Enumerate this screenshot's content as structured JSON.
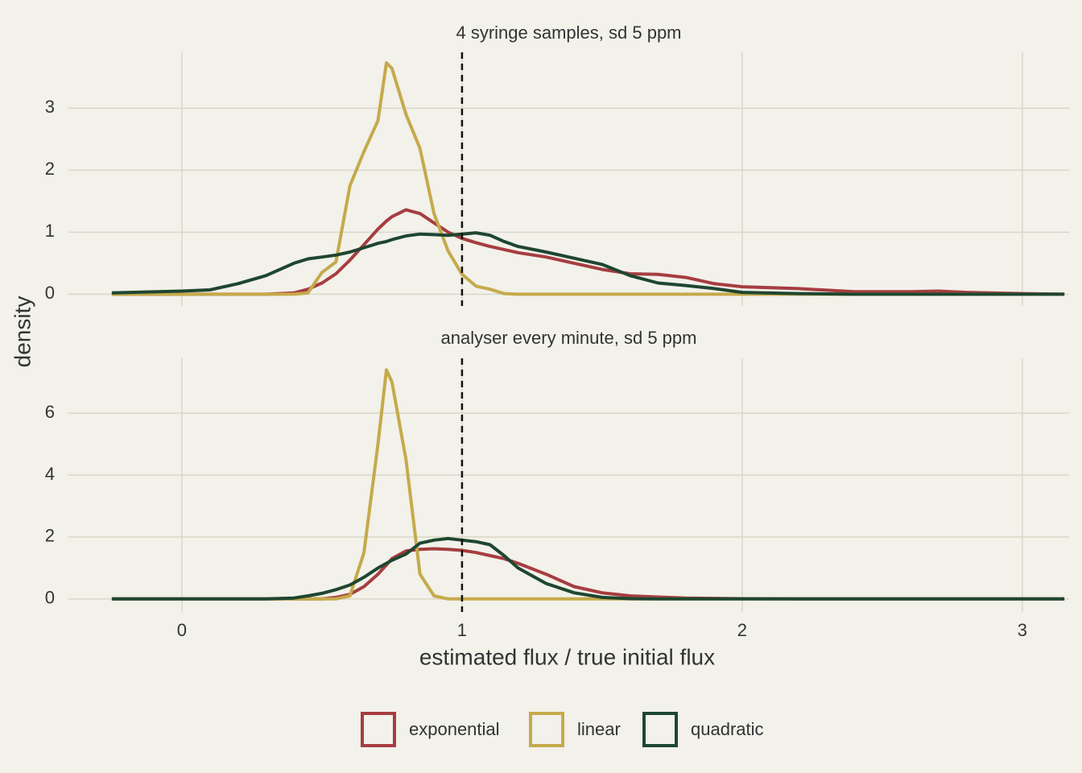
{
  "chart_data": [
    {
      "type": "line",
      "title": "4 syringe samples, sd 5 ppm",
      "ylabel": "density",
      "x": [
        -0.25,
        0,
        0.1,
        0.2,
        0.3,
        0.4,
        0.45,
        0.5,
        0.55,
        0.6,
        0.65,
        0.7,
        0.73,
        0.75,
        0.8,
        0.85,
        0.9,
        0.95,
        1.0,
        1.05,
        1.1,
        1.15,
        1.2,
        1.3,
        1.4,
        1.5,
        1.6,
        1.7,
        1.8,
        1.9,
        2.0,
        2.2,
        2.4,
        2.6,
        2.7,
        2.8,
        3.0,
        3.15
      ],
      "series": [
        {
          "name": "exponential",
          "color": "#a63d40",
          "values": [
            0,
            0,
            0,
            0,
            0,
            0.02,
            0.08,
            0.18,
            0.33,
            0.55,
            0.8,
            1.05,
            1.18,
            1.25,
            1.36,
            1.3,
            1.15,
            1.0,
            0.9,
            0.83,
            0.77,
            0.72,
            0.67,
            0.6,
            0.5,
            0.4,
            0.33,
            0.32,
            0.27,
            0.17,
            0.12,
            0.09,
            0.04,
            0.04,
            0.05,
            0.03,
            0.01,
            0
          ]
        },
        {
          "name": "linear",
          "color": "#c5aa4b",
          "values": [
            0,
            0,
            0,
            0,
            0,
            0,
            0.02,
            0.35,
            0.52,
            1.75,
            2.3,
            2.8,
            3.73,
            3.64,
            2.9,
            2.35,
            1.3,
            0.7,
            0.32,
            0.13,
            0.08,
            0.01,
            0,
            0,
            0,
            0,
            0,
            0,
            0,
            0,
            0,
            0,
            0,
            0,
            0,
            0,
            0,
            0
          ]
        },
        {
          "name": "quadratic",
          "color": "#1e4630",
          "values": [
            0.02,
            0.05,
            0.07,
            0.17,
            0.3,
            0.5,
            0.57,
            0.6,
            0.63,
            0.68,
            0.75,
            0.82,
            0.85,
            0.88,
            0.94,
            0.97,
            0.96,
            0.95,
            0.97,
            0.99,
            0.95,
            0.85,
            0.77,
            0.68,
            0.58,
            0.48,
            0.3,
            0.18,
            0.14,
            0.09,
            0.03,
            0.01,
            0,
            0,
            0,
            0,
            0,
            0
          ]
        }
      ],
      "vline": 1,
      "xlim": [
        -0.405,
        3.167
      ],
      "ylim": [
        -0.19,
        3.9
      ],
      "xticks": [
        0,
        1,
        2,
        3
      ],
      "yticks": [
        0,
        1,
        2,
        3
      ],
      "grid": true,
      "legend": "bottom"
    },
    {
      "type": "line",
      "title": "analyser every minute, sd 5 ppm",
      "xlabel": "estimated flux / true initial flux",
      "x": [
        -0.25,
        0,
        0.1,
        0.2,
        0.3,
        0.4,
        0.45,
        0.5,
        0.55,
        0.6,
        0.65,
        0.7,
        0.73,
        0.75,
        0.8,
        0.85,
        0.9,
        0.95,
        1.0,
        1.05,
        1.1,
        1.15,
        1.2,
        1.3,
        1.4,
        1.5,
        1.6,
        1.7,
        1.8,
        1.9,
        2.0,
        2.2,
        2.4,
        2.6,
        2.7,
        2.8,
        3.0,
        3.15
      ],
      "series": [
        {
          "color": "#a63d40",
          "values": [
            0,
            0,
            0,
            0,
            0,
            0,
            0,
            0,
            0.05,
            0.15,
            0.4,
            0.8,
            1.1,
            1.3,
            1.55,
            1.6,
            1.62,
            1.6,
            1.57,
            1.5,
            1.4,
            1.3,
            1.15,
            0.8,
            0.4,
            0.2,
            0.1,
            0.06,
            0.03,
            0.02,
            0.01,
            0,
            0,
            0,
            0,
            0,
            0,
            0
          ]
        },
        {
          "color": "#c5aa4b",
          "values": [
            0,
            0,
            0,
            0,
            0,
            0,
            0,
            0,
            0,
            0.1,
            1.5,
            5.0,
            7.4,
            7.0,
            4.5,
            0.8,
            0.1,
            0,
            0,
            0,
            0,
            0,
            0,
            0,
            0,
            0,
            0,
            0,
            0,
            0,
            0,
            0,
            0,
            0,
            0,
            0,
            0,
            0
          ]
        },
        {
          "color": "#1e4630",
          "values": [
            0,
            0,
            0,
            0,
            0,
            0.03,
            0.1,
            0.18,
            0.3,
            0.45,
            0.7,
            1.0,
            1.15,
            1.25,
            1.45,
            1.8,
            1.9,
            1.95,
            1.9,
            1.85,
            1.75,
            1.4,
            1.0,
            0.5,
            0.2,
            0.05,
            0.01,
            0,
            0,
            0,
            0,
            0,
            0,
            0,
            0,
            0,
            0,
            0
          ]
        }
      ],
      "vline": 1,
      "xlim": [
        -0.405,
        3.167
      ],
      "ylim": [
        -0.42,
        7.77
      ],
      "xticks": [
        0,
        1,
        2,
        3
      ],
      "yticks": [
        0,
        2,
        4,
        6
      ],
      "grid": true
    }
  ]
}
